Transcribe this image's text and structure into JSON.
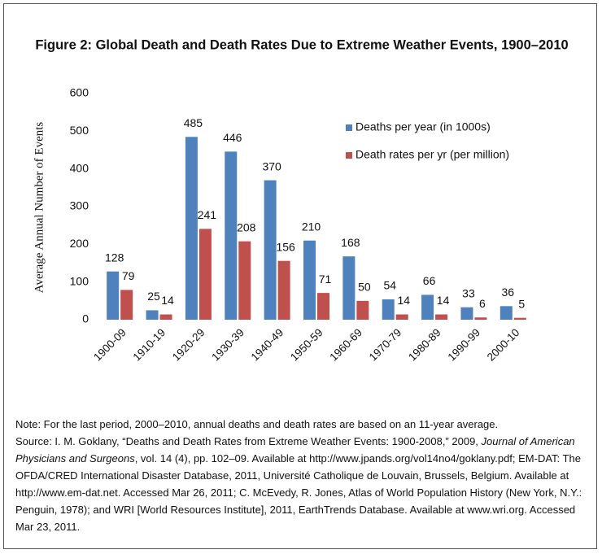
{
  "chart_data": {
    "type": "bar",
    "title": "Figure 2: Global Death and Death Rates Due to Extreme Weather Events, 1900–2010",
    "y_label": "Average Annual Number of Events",
    "categories": [
      "1900-09",
      "1910-19",
      "1920-29",
      "1930-39",
      "1940-49",
      "1950-59",
      "1960-69",
      "1970-79",
      "1980-89",
      "1990-99",
      "2000-10"
    ],
    "series": [
      {
        "name": "Deaths per year (in 1000s)",
        "color": "#4f81bd",
        "values": [
          128,
          25,
          485,
          446,
          370,
          210,
          168,
          54,
          66,
          33,
          36
        ]
      },
      {
        "name": "Death rates per yr (per million)",
        "color": "#c0504d",
        "values": [
          79,
          14,
          241,
          208,
          156,
          71,
          50,
          14,
          14,
          6,
          5
        ]
      }
    ],
    "ylim": [
      0,
      600
    ],
    "yticks": [
      0,
      100,
      200,
      300,
      400,
      500,
      600
    ],
    "grid": false,
    "legend": "upper right"
  },
  "notes": {
    "note": "Note: For the last period, 2000–2010, annual deaths and death rates are based on an 11-year average.",
    "source_before": "Source: I. M. Goklany, “Deaths and Death Rates from Extreme Weather Events: 1900-2008,” 2009, ",
    "source_journal": "Journal of American Physicians and Surgeons",
    "source_after": ", vol. 14 (4), pp. 102–09. Available at http://www.jpands.org/vol14no4/goklany.pdf; EM-DAT: The OFDA/CRED International Disaster Database, 2011, Université Catholique de Louvain, Brussels, Belgium. Available at http://www.em-dat.net. Accessed Mar 26, 2011; C. McEvedy, R. Jones,  Atlas of World Population History (New York, N.Y.: Penguin, 1978); and WRI [World Resources Institute], 2011, EarthTrends Database. Available at www.wri.org. Accessed Mar 23, 2011."
  }
}
